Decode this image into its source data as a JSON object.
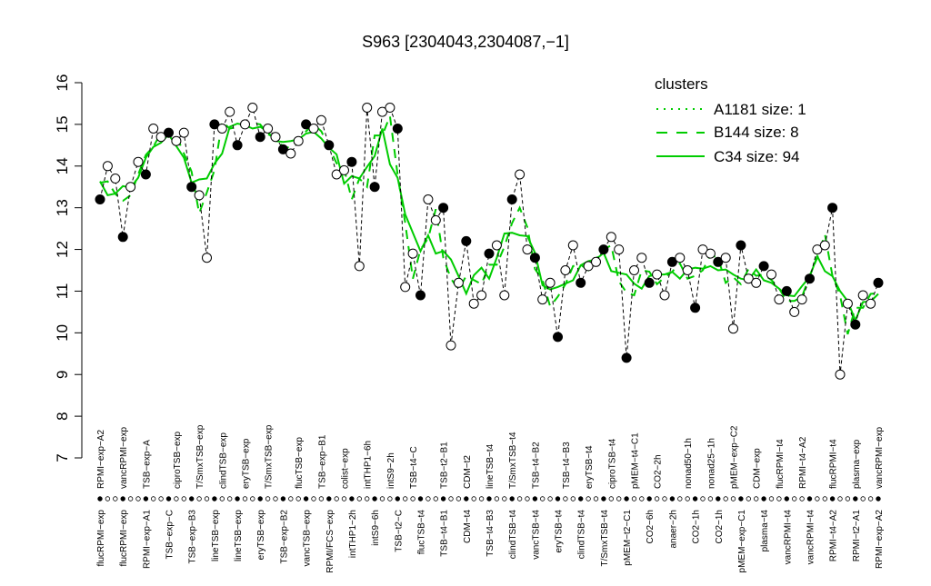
{
  "chart_data": {
    "type": "line",
    "title": "S963 [2304043,2304087,−1]",
    "xlabel": "",
    "ylabel": "",
    "ylim": [
      7,
      16
    ],
    "yticks": [
      7,
      8,
      9,
      10,
      11,
      12,
      13,
      14,
      15,
      16
    ],
    "grid": false,
    "legend": {
      "title": "clusters",
      "position": "top-right",
      "color": "#00cc00",
      "entries": [
        {
          "label": "A1181 size: 1",
          "style": "dotted"
        },
        {
          "label": "B144 size: 8",
          "style": "dashed"
        },
        {
          "label": "C34 size: 94",
          "style": "solid"
        }
      ]
    },
    "x_labels_top": [
      "RPMI−exp−A2",
      "vancRPMI−exp",
      "TSB−exp−A",
      "ciproTSB−exp",
      "T/SmxTSB−exp",
      "clindTSB−exp",
      "eryTSB−exp",
      "T/SmxTSB−exp",
      "flucTSB−exp",
      "TSB−exp−B1",
      "colist−exp",
      "intTHP1−6h",
      "intS9−2h",
      "TSB−t4−C",
      "TSB−t2−B1",
      "CDM−t2",
      "lineTSB−t4",
      "T/SmxTSB−t4",
      "TSB−t4−B2",
      "TSB−t4−B3",
      "eryTSB−t4",
      "ciproTSB−t4",
      "pMEM−t4−C1",
      "CO2−2h",
      "nonad50−1h",
      "nonad25−1h",
      "pMEM−exp−C2",
      "CDM−exp",
      "flucRPMI−t4",
      "RPMI−t4−A2",
      "flucRPMI−t4",
      "plasma−exp",
      "vancRPMI−exp"
    ],
    "x_labels_bottom": [
      "flucRPMI−exp",
      "flucRPMI−exp",
      "RPMI−exp−A1",
      "TSB−exp−C",
      "TSB−exp−B3",
      "lineTSB−exp",
      "lineTSB−exp",
      "eryTSB−exp",
      "TSB−exp−B2",
      "vancTSB−exp",
      "RPMI/FCS−exp",
      "intTHP1−2h",
      "intS9−6h",
      "TSB−t2−C",
      "flucTSB−t4",
      "TSB−t4−B1",
      "CDM−t4",
      "TSB−t4−B3",
      "clindTSB−t4",
      "vancTSB−t4",
      "eryTSB−t4",
      "clindTSB−t4",
      "T/SmxTSB−t4",
      "pMEM−t2−C1",
      "CO2−6h",
      "anaer−2h",
      "CO2−1h",
      "CO2−1h",
      "pMEM−exp−C1",
      "plasma−t4",
      "vancRPMI−t4",
      "vancRPMI−t4",
      "RPMI−t4−A2",
      "RPMI−t2−A1",
      "RPMI−exp−A2"
    ],
    "x": [
      1,
      2,
      3,
      4,
      5,
      6,
      7,
      8,
      9,
      10,
      11,
      12,
      13,
      14,
      15,
      16,
      17,
      18,
      19,
      20,
      21,
      22,
      23,
      24,
      25,
      26,
      27,
      28,
      29,
      30,
      31,
      32,
      33,
      34,
      35,
      36,
      37,
      38,
      39,
      40,
      41,
      42,
      43,
      44,
      45,
      46,
      47,
      48,
      49,
      50,
      51,
      52,
      53,
      54,
      55,
      56,
      57,
      58,
      59,
      60,
      61,
      62,
      63,
      64,
      65,
      66,
      67,
      68,
      69,
      70,
      71,
      72,
      73,
      74,
      75,
      76,
      77,
      78,
      79,
      80,
      81,
      82,
      83,
      84,
      85,
      86,
      87,
      88,
      89,
      90,
      91,
      92,
      93,
      94,
      95,
      96,
      97,
      98,
      99,
      100,
      101,
      102,
      103
    ],
    "series": [
      {
        "values": [
          13.2,
          14.0,
          13.7,
          12.3,
          13.5,
          14.1,
          13.8,
          14.9,
          14.7,
          14.8,
          14.6,
          14.8,
          13.5,
          13.3,
          11.8,
          15.0,
          14.9,
          15.3,
          14.5,
          15.0,
          15.4,
          14.7,
          14.9,
          14.7,
          14.4,
          14.3,
          14.6,
          15.0,
          14.9,
          15.1,
          14.5,
          13.8,
          13.9,
          14.1,
          11.6,
          15.4,
          13.5,
          15.3,
          15.4,
          14.9,
          11.1,
          11.9,
          10.9,
          13.2,
          12.7,
          13.0,
          9.7,
          11.2,
          12.2,
          10.7,
          10.9,
          11.9,
          12.1,
          10.9,
          13.2,
          13.8,
          12.0,
          11.8,
          10.8,
          11.2,
          9.9,
          11.5,
          12.1,
          11.2,
          11.6,
          11.7,
          12.0,
          12.3,
          12.0,
          9.4,
          11.5,
          11.8,
          11.2,
          11.4,
          10.9,
          11.7,
          11.8,
          11.5,
          10.6,
          12.0,
          11.9,
          11.7,
          11.8,
          10.1,
          12.1,
          11.3,
          11.2,
          11.6,
          11.4,
          10.8,
          11.0,
          10.5,
          10.8,
          11.3,
          12.0,
          12.1,
          13.0,
          9.0,
          10.7,
          10.2,
          10.9,
          10.7,
          11.2
        ]
      }
    ]
  }
}
